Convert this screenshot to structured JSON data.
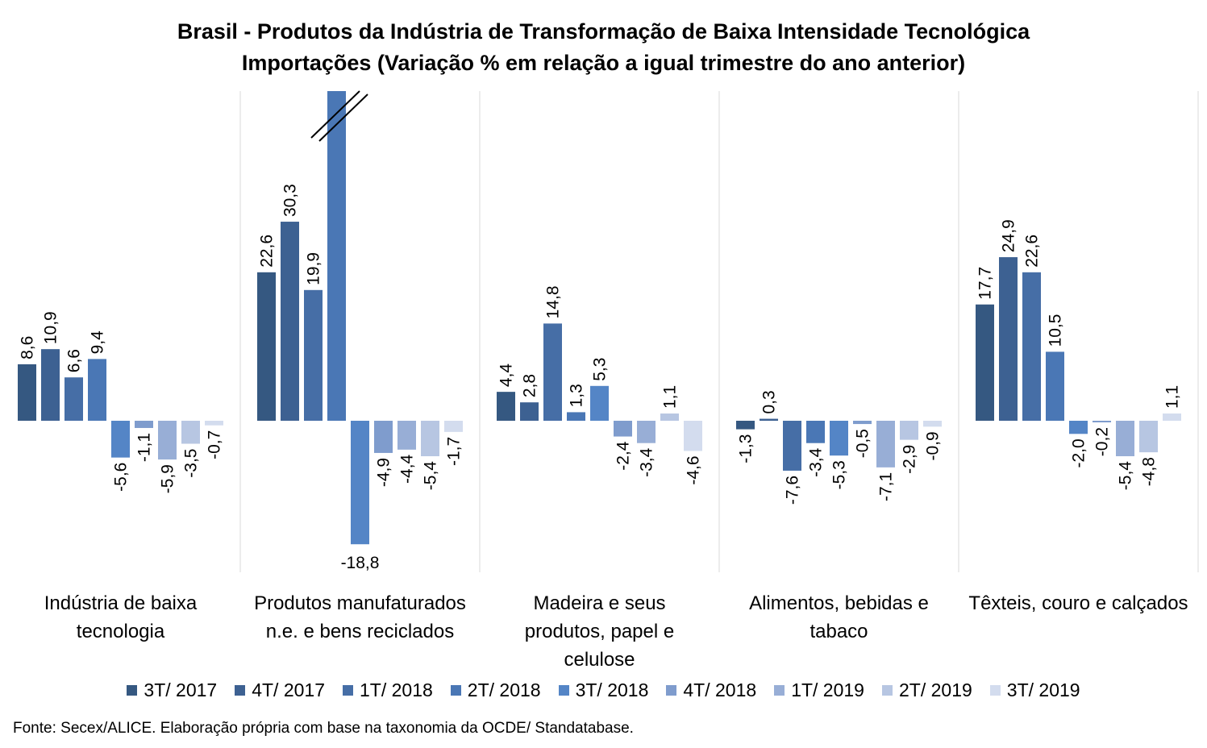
{
  "title_line1": "Brasil - Produtos da Indústria de Transformação de Baixa Intensidade Tecnológica",
  "title_line2": "Importações (Variação % em relação a igual trimestre do ano anterior)",
  "source": "Fonte: Secex/ALICE. Elaboração própria com base na taxonomia da OCDE/ Standatabase.",
  "chart_data": {
    "type": "bar",
    "categories": [
      [
        "Indústria de baixa",
        "tecnologia"
      ],
      [
        "Produtos manufaturados",
        "n.e. e bens reciclados"
      ],
      [
        "Madeira e seus",
        "produtos, papel e",
        "celulose"
      ],
      [
        "Alimentos, bebidas e",
        "tabaco"
      ],
      [
        "Têxteis, couro e calçados"
      ]
    ],
    "series": [
      {
        "name": "3T/ 2017",
        "color": "#355881",
        "values": [
          8.6,
          22.6,
          4.4,
          -1.3,
          17.7
        ]
      },
      {
        "name": "4T/ 2017",
        "color": "#3d6192",
        "values": [
          10.9,
          30.3,
          2.8,
          0.3,
          24.9
        ]
      },
      {
        "name": "1T/ 2018",
        "color": "#466ea6",
        "values": [
          6.6,
          19.9,
          14.8,
          -7.6,
          22.6
        ]
      },
      {
        "name": "2T/ 2018",
        "color": "#4a77b5",
        "values": [
          9.4,
          null,
          1.3,
          -3.4,
          10.5
        ]
      },
      {
        "name": "3T/ 2018",
        "color": "#5485c6",
        "values": [
          -5.6,
          -18.8,
          5.3,
          -5.3,
          -2.0
        ]
      },
      {
        "name": "4T/ 2018",
        "color": "#7f9ccd",
        "values": [
          -1.1,
          -4.9,
          -2.4,
          -0.5,
          -0.2
        ]
      },
      {
        "name": "1T/ 2019",
        "color": "#98aed6",
        "values": [
          -5.9,
          -4.4,
          -3.4,
          -7.1,
          -5.4
        ]
      },
      {
        "name": "2T/ 2019",
        "color": "#b7c6e2",
        "values": [
          -3.5,
          -5.4,
          1.1,
          -2.9,
          -4.8
        ]
      },
      {
        "name": "3T/ 2019",
        "color": "#d3dcee",
        "values": [
          -0.7,
          -1.7,
          -4.6,
          -0.9,
          1.1
        ]
      }
    ],
    "value_labels": [
      [
        "8,6",
        "10,9",
        "6,6",
        "9,4",
        "-5,6",
        "-1,1",
        "-5,9",
        "-3,5",
        "-0,7"
      ],
      [
        "22,6",
        "30,3",
        "19,9",
        "",
        "-18,8",
        "-4,9",
        "-4,4",
        "-5,4",
        "-1,7"
      ],
      [
        "4,4",
        "2,8",
        "14,8",
        "1,3",
        "5,3",
        "-2,4",
        "-3,4",
        "1,1",
        "-4,6"
      ],
      [
        "-1,3",
        "0,3",
        "-7,6",
        "-3,4",
        "-5,3",
        "-0,5",
        "-7,1",
        "-2,9",
        "-0,9"
      ],
      [
        "17,7",
        "24,9",
        "22,6",
        "10,5",
        "-2,0",
        "-0,2",
        "-5,4",
        "-4,8",
        "1,1"
      ]
    ],
    "broken_axis_bar": {
      "category_index": 1,
      "series_index": 3
    },
    "legend_position": "bottom",
    "grid": false
  }
}
